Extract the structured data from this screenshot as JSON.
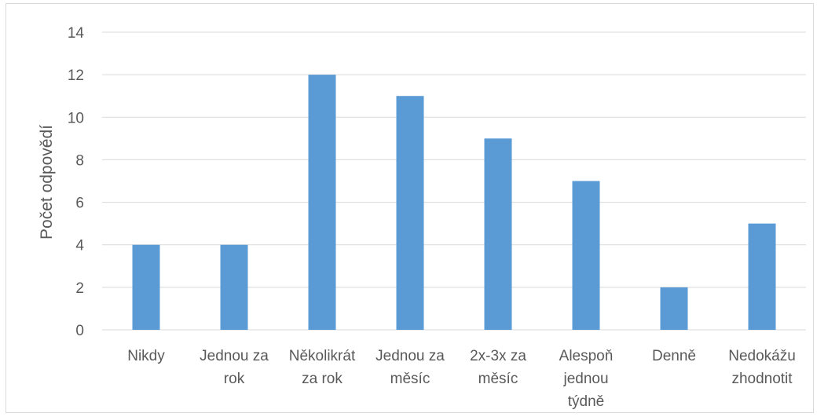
{
  "chart_data": {
    "type": "bar",
    "title": "",
    "xlabel": "",
    "ylabel": "Počet odpovědí",
    "categories": [
      [
        "Nikdy"
      ],
      [
        "Jednou za",
        "rok"
      ],
      [
        "Několikrát",
        "za rok"
      ],
      [
        "Jednou za",
        "měsíc"
      ],
      [
        "2x-3x za",
        "měsíc"
      ],
      [
        "Alespoň",
        "jednou",
        "týdně"
      ],
      [
        "Denně"
      ],
      [
        "Nedokážu",
        "zhodnotit"
      ]
    ],
    "values": [
      4,
      4,
      12,
      11,
      9,
      7,
      2,
      5
    ],
    "ylim": [
      0,
      14
    ],
    "yticks": [
      0,
      2,
      4,
      6,
      8,
      10,
      12,
      14
    ],
    "grid": true,
    "legend": "none",
    "colors": {
      "bar": "#5B9BD5",
      "grid": "#d9d9d9",
      "text": "#595959"
    }
  }
}
